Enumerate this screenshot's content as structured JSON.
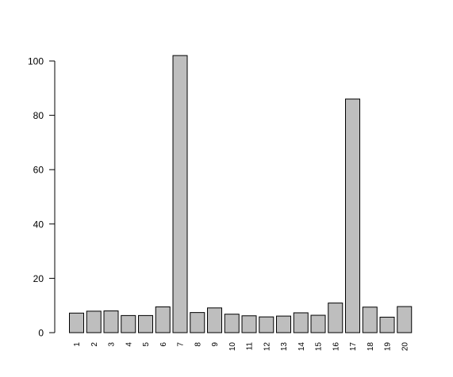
{
  "chart_data": {
    "type": "bar",
    "title": "",
    "xlabel": "",
    "ylabel": "",
    "categories": [
      "1",
      "2",
      "3",
      "4",
      "5",
      "6",
      "7",
      "8",
      "9",
      "10",
      "11",
      "12",
      "13",
      "14",
      "15",
      "16",
      "17",
      "18",
      "19",
      "20"
    ],
    "values": [
      7.2,
      7.9,
      8.0,
      6.3,
      6.3,
      9.5,
      102,
      7.4,
      9.1,
      6.8,
      6.2,
      5.8,
      6.1,
      7.3,
      6.4,
      10.9,
      86,
      9.4,
      5.7,
      9.6
    ],
    "ylim": [
      0,
      102
    ],
    "yticks": [
      0,
      20,
      40,
      60,
      80,
      100
    ],
    "grid": false,
    "legend": "none",
    "bar_fill": "#bebebe",
    "bar_stroke": "#000000"
  }
}
